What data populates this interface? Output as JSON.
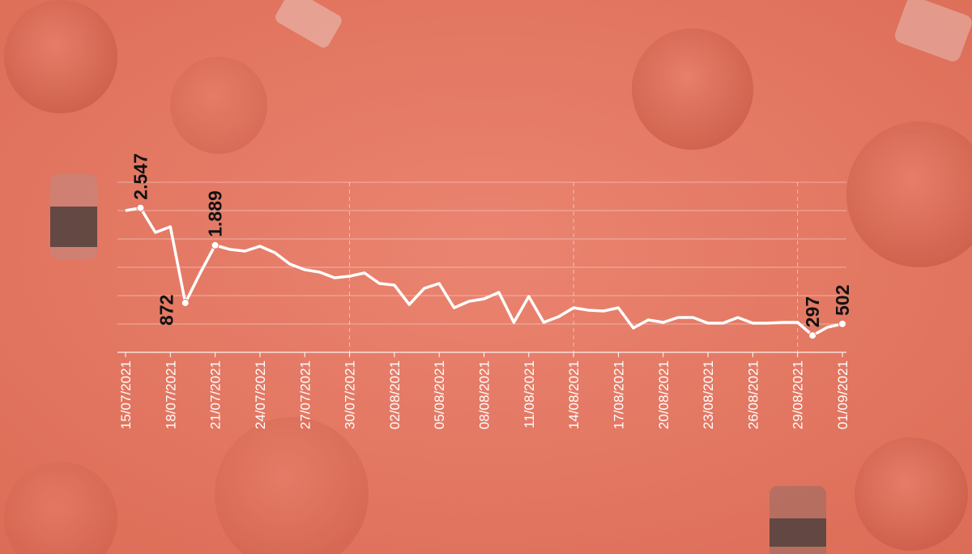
{
  "chart_data": {
    "type": "line",
    "categories": [
      "15/07/2021",
      null,
      null,
      "18/07/2021",
      null,
      null,
      "21/07/2021",
      null,
      null,
      "24/07/2021",
      null,
      null,
      "27/07/2021",
      null,
      null,
      "30/07/2021",
      null,
      null,
      "02/08/2021",
      null,
      null,
      "05/08/2021",
      null,
      null,
      "08/08/2021",
      null,
      null,
      "11/08/2021",
      null,
      null,
      "14/08/2021",
      null,
      null,
      "17/08/2021",
      null,
      null,
      "20/08/2021",
      null,
      null,
      "23/08/2021",
      null,
      null,
      "26/08/2021",
      null,
      null,
      "29/08/2021",
      null,
      null,
      "01/09/2021"
    ],
    "values": [
      2500,
      2547,
      2114,
      2214,
      872,
      1400,
      1889,
      1814,
      1786,
      1871,
      1757,
      1557,
      1457,
      1414,
      1314,
      1343,
      1400,
      1214,
      1186,
      843,
      1129,
      1214,
      786,
      900,
      943,
      1057,
      529,
      986,
      529,
      629,
      786,
      743,
      729,
      786,
      429,
      571,
      529,
      614,
      614,
      514,
      514,
      614,
      514,
      514,
      529,
      529,
      297,
      443,
      502
    ],
    "value_labels": [
      null,
      "2.547",
      null,
      null,
      "872",
      null,
      "1.889",
      null,
      null,
      null,
      null,
      null,
      null,
      null,
      null,
      null,
      null,
      null,
      null,
      null,
      null,
      null,
      null,
      null,
      null,
      null,
      null,
      null,
      null,
      null,
      null,
      null,
      null,
      null,
      null,
      null,
      null,
      null,
      null,
      null,
      null,
      null,
      null,
      null,
      null,
      null,
      "297",
      null,
      "502"
    ],
    "color": "#ffffff",
    "ylim": [
      0,
      3000
    ],
    "yticks": [
      0,
      500,
      1000,
      1500,
      2000,
      2500,
      3000
    ],
    "grid": true
  }
}
